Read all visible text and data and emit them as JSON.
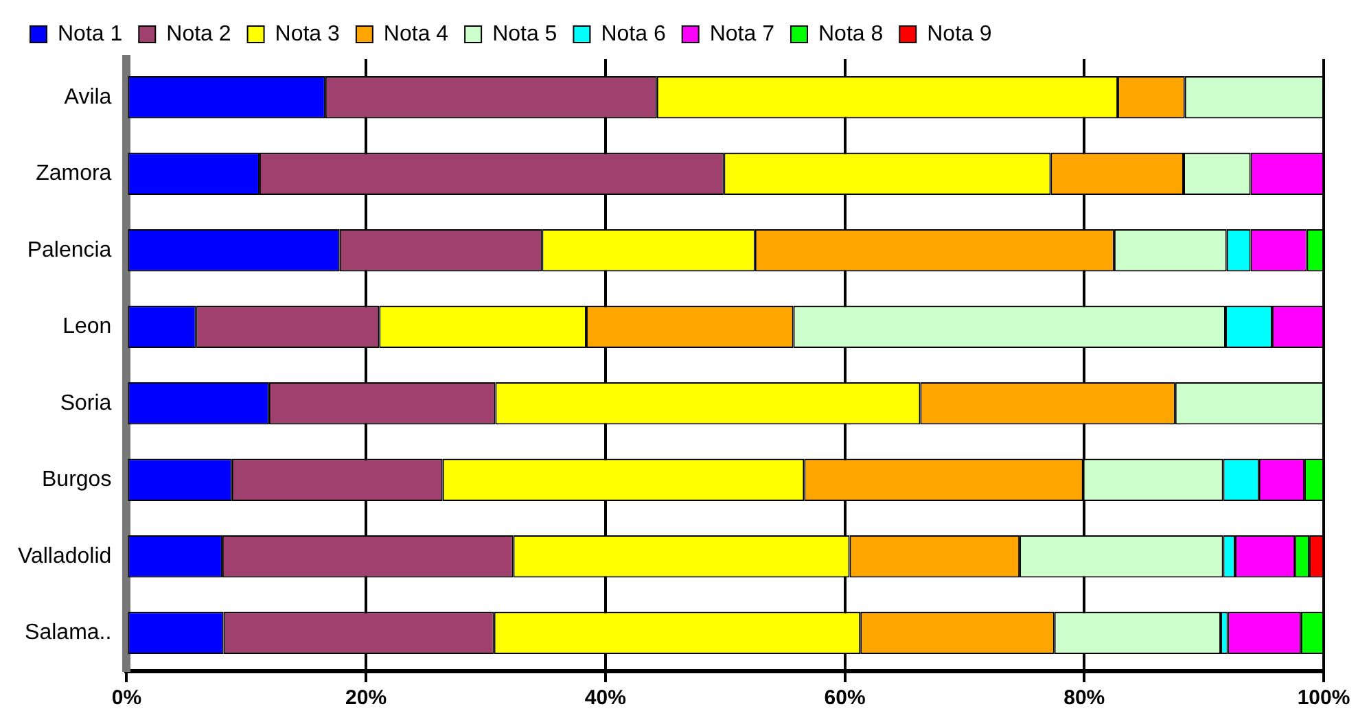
{
  "chart_data": {
    "type": "bar",
    "orientation": "horizontal",
    "stacked": true,
    "categories": [
      "Avila",
      "Zamora",
      "Palencia",
      "Leon",
      "Soria",
      "Burgos",
      "Valladolid",
      "Salama.."
    ],
    "series": [
      {
        "name": "Nota 1",
        "color": "#0000ff",
        "values": [
          16.6,
          11.1,
          17.8,
          5.8,
          11.9,
          8.8,
          8.0,
          8.1
        ]
      },
      {
        "name": "Nota 2",
        "color": "#a0406f",
        "values": [
          27.7,
          38.8,
          16.9,
          15.3,
          18.9,
          17.6,
          24.3,
          22.6
        ]
      },
      {
        "name": "Nota 3",
        "color": "#ffff00",
        "values": [
          38.5,
          27.3,
          17.8,
          17.3,
          35.5,
          30.2,
          28.1,
          30.6
        ]
      },
      {
        "name": "Nota 4",
        "color": "#ffa500",
        "values": [
          5.6,
          11.1,
          30.0,
          17.3,
          21.3,
          23.3,
          14.2,
          16.2
        ]
      },
      {
        "name": "Nota 5",
        "color": "#ccffcc",
        "values": [
          11.6,
          5.6,
          9.4,
          36.1,
          12.4,
          11.7,
          17.0,
          13.9
        ]
      },
      {
        "name": "Nota 6",
        "color": "#00ffff",
        "values": [
          0,
          0,
          2.0,
          3.9,
          0,
          3.0,
          1.0,
          0.6
        ]
      },
      {
        "name": "Nota 7",
        "color": "#ff00ff",
        "values": [
          0,
          6.1,
          4.7,
          4.3,
          0,
          3.8,
          5.0,
          6.1
        ]
      },
      {
        "name": "Nota 8",
        "color": "#00ff00",
        "values": [
          0,
          0,
          1.4,
          0,
          0,
          1.6,
          1.2,
          1.9
        ]
      },
      {
        "name": "Nota 9",
        "color": "#ff0000",
        "values": [
          0,
          0,
          0,
          0,
          0,
          0,
          1.2,
          0
        ]
      }
    ],
    "xlim": [
      0,
      100
    ],
    "xticks": [
      {
        "value": 0,
        "label": "0%"
      },
      {
        "value": 20,
        "label": "20%"
      },
      {
        "value": 40,
        "label": "40%"
      },
      {
        "value": 60,
        "label": "60%"
      },
      {
        "value": 80,
        "label": "80%"
      },
      {
        "value": 100,
        "label": "100%"
      }
    ],
    "grid": "x",
    "legend": "top"
  }
}
